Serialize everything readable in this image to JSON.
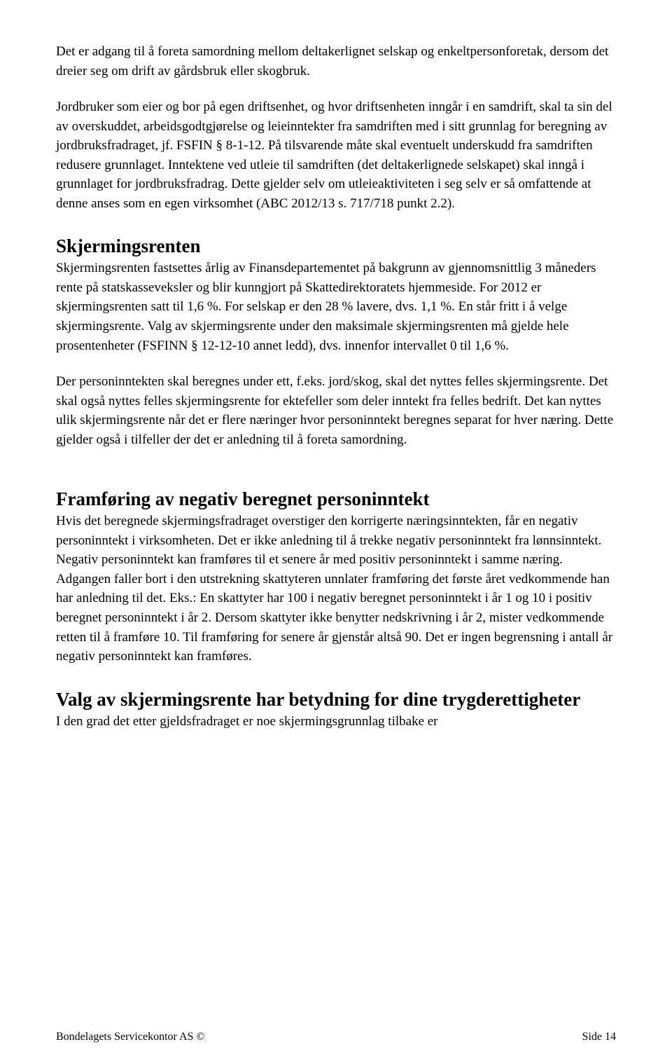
{
  "p1": "Det er adgang til å foreta samordning mellom deltakerlignet selskap og enkeltpersonforetak, dersom det dreier seg om drift av gårdsbruk eller skogbruk.",
  "p2": "Jordbruker som eier og bor på egen driftsenhet, og hvor driftsenheten inngår i en samdrift, skal ta sin del av overskuddet, arbeidsgodtgjørelse og leieinntekter fra samdriften med i sitt grunnlag for beregning av jordbruksfradraget, jf. FSFIN § 8-1-12. På tilsvarende måte skal eventuelt underskudd fra samdriften redusere grunnlaget. Inntektene ved utleie til samdriften (det deltakerlignede selskapet) skal inngå i grunnlaget for jordbruksfradrag. Dette gjelder selv om utleieaktiviteten i seg selv er så omfattende at denne anses som en egen virksomhet (ABC 2012/13 s. 717/718 punkt 2.2).",
  "h1": "Skjermingsrenten",
  "p3": "Skjermingsrenten fastsettes årlig av Finansdepartementet på bakgrunn av gjennomsnittlig 3 måneders rente på statskasseveksler og blir kunngjort på Skattedirektoratets hjemmeside. For 2012 er skjermingsrenten satt til 1,6 %. For selskap er den 28 % lavere, dvs. 1,1 %. En står fritt i å velge skjermingsrente. Valg av skjermingsrente under den maksimale skjermingsrenten må gjelde hele prosentenheter (FSFINN § 12-12-10 annet ledd), dvs. innenfor intervallet 0 til 1,6 %.",
  "p4": "Der personinntekten skal beregnes under ett, f.eks. jord/skog, skal det nyttes felles skjermingsrente. Det skal også nyttes felles skjermingsrente for ektefeller som deler inntekt fra felles bedrift. Det kan nyttes ulik skjermingsrente når det er flere næringer hvor personinntekt beregnes separat for hver næring. Dette gjelder også i tilfeller der det er anledning til å foreta samordning.",
  "h2": "Framføring av negativ beregnet personinntekt",
  "p5": "Hvis det beregnede skjermingsfradraget overstiger den korrigerte næringsinntekten, får en negativ personinntekt i virksomheten. Det er ikke anledning til å trekke negativ personinntekt fra lønnsinntekt. Negativ personinntekt kan framføres til et senere år med positiv personinntekt i samme næring. Adgangen faller bort i den utstrekning skattyteren unnlater framføring det første året vedkommende han har anledning til det. Eks.: En skattyter har 100 i negativ beregnet personinntekt i år 1 og 10 i positiv beregnet personinntekt i år 2. Dersom skattyter ikke benytter nedskrivning i år 2, mister vedkommende retten til å framføre 10. Til framføring for senere år gjenstår altså 90. Det er ingen begrensning i antall år negativ personinntekt kan framføres.",
  "h3": "Valg av skjermingsrente har betydning for dine trygderettigheter",
  "p6": "I den grad det etter gjeldsfradraget er noe skjermingsgrunnlag tilbake er",
  "footer_left": "Bondelagets Servicekontor AS ©",
  "footer_right": "Side 14"
}
